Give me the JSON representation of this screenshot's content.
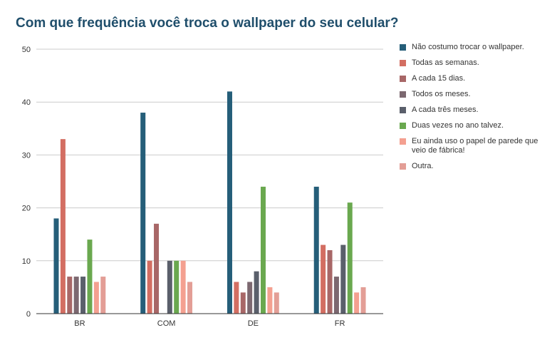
{
  "chart_data": {
    "type": "bar",
    "title": "Com que frequência você troca o wallpaper do seu celular?",
    "categories": [
      "BR",
      "COM",
      "DE",
      "FR"
    ],
    "ylim": [
      0,
      50
    ],
    "yticks": [
      "0",
      "10",
      "20",
      "30",
      "40",
      "50"
    ],
    "grid": true,
    "legend_position": "right",
    "series": [
      {
        "name": "Não costumo trocar o wallpaper.",
        "color": "#255e79",
        "values": [
          18,
          38,
          42,
          24
        ]
      },
      {
        "name": "Todas as semanas.",
        "color": "#d36e62",
        "values": [
          33,
          10,
          6,
          13
        ]
      },
      {
        "name": "A cada 15 dias.",
        "color": "#a86767",
        "values": [
          7,
          17,
          4,
          12
        ]
      },
      {
        "name": "Todos os meses.",
        "color": "#7c6870",
        "values": [
          7,
          0,
          6,
          7
        ]
      },
      {
        "name": "A cada três meses.",
        "color": "#5a5f6b",
        "values": [
          7,
          10,
          8,
          13
        ]
      },
      {
        "name": "Duas vezes no ano talvez.",
        "color": "#6aa84f",
        "values": [
          14,
          10,
          24,
          21
        ]
      },
      {
        "name": "Eu ainda uso o papel de parede que veio de fábrica!",
        "color": "#f4a090",
        "values": [
          6,
          10,
          5,
          4
        ]
      },
      {
        "name": "Outra.",
        "color": "#e39e96",
        "values": [
          7,
          6,
          4,
          5
        ]
      }
    ]
  }
}
